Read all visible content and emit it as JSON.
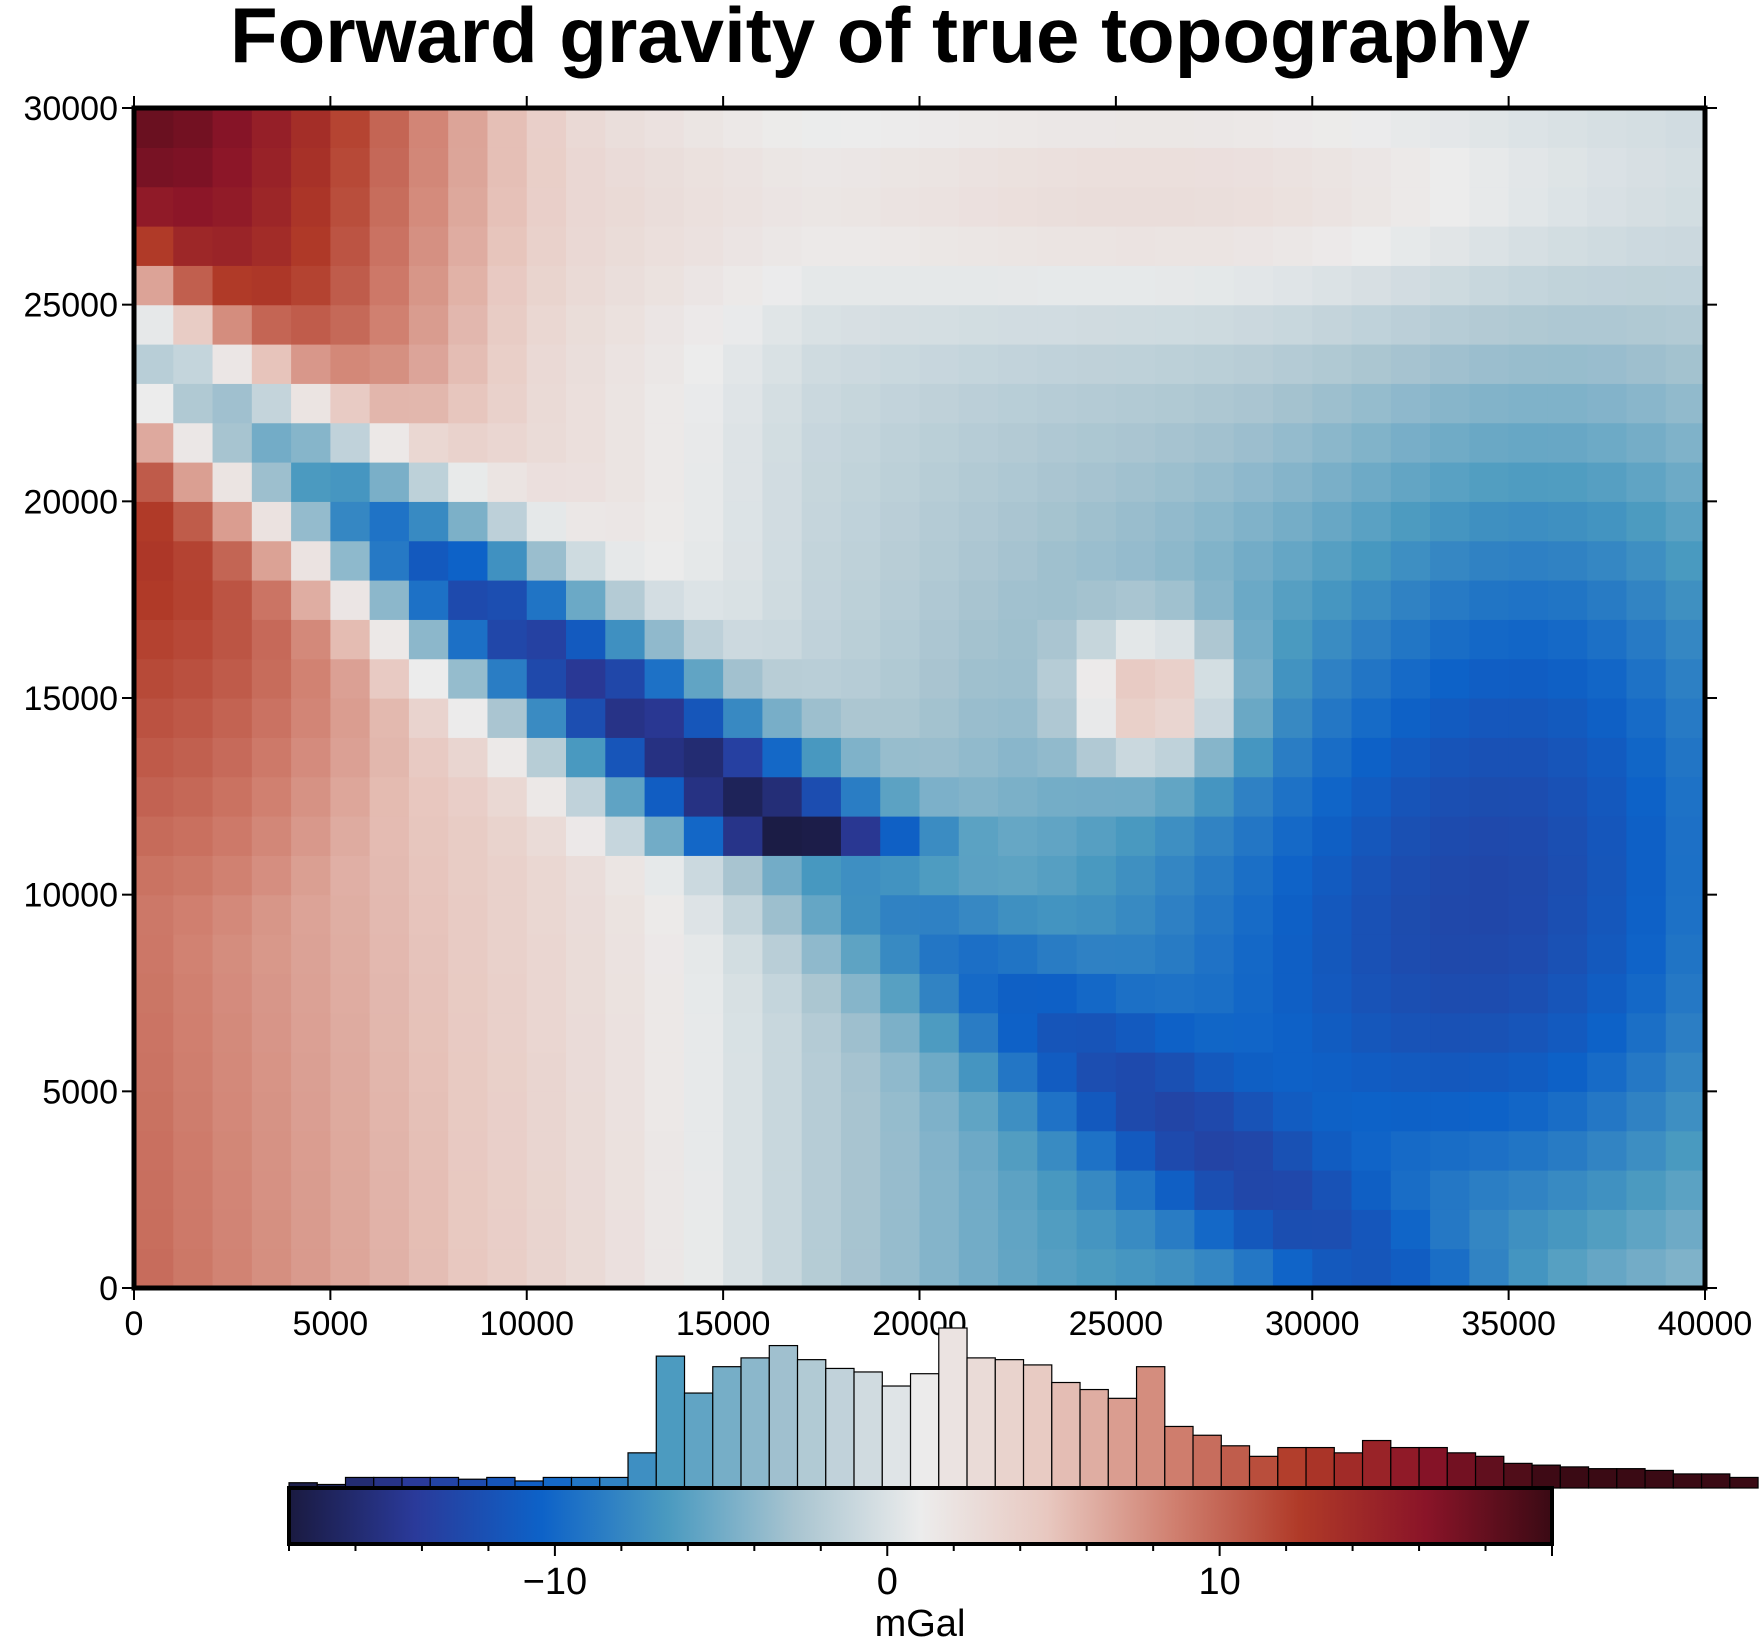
{
  "chart_data": {
    "type": "heatmap",
    "title": "Forward gravity of true topography",
    "xlabel": "",
    "ylabel": "",
    "xlim": [
      0,
      40000
    ],
    "ylim": [
      0,
      30000
    ],
    "x_ticks": [
      "0",
      "5000",
      "10000",
      "15000",
      "20000",
      "25000",
      "30000",
      "35000",
      "40000"
    ],
    "y_ticks": [
      "0",
      "5000",
      "10000",
      "15000",
      "20000",
      "25000",
      "30000"
    ],
    "grid_shape": {
      "nx": 40,
      "ny": 30,
      "cell_size": 1000
    },
    "field_description_values": {
      "max_anomaly_top_left": 19,
      "min_anomaly_ridge": -17,
      "local_high_near": {
        "x": 26000,
        "y": 15000,
        "value": 11
      },
      "broad_low_southeast": -10
    },
    "colorbar": {
      "label": "mGal",
      "range": [
        -18,
        20
      ],
      "tick_labels": [
        "−10",
        "0",
        "10"
      ],
      "tick_values": [
        -10,
        0,
        10
      ],
      "colors": [
        "#1a1a40",
        "#2a3a9a",
        "#0d62c8",
        "#4a9ac0",
        "#a8c4d0",
        "#ececec",
        "#e8c8c0",
        "#d08070",
        "#b03a28",
        "#8a1428",
        "#3a0a14"
      ]
    },
    "histogram": {
      "bin_start": -18,
      "bin_width": 0.85,
      "counts": [
        3,
        2,
        6,
        6,
        6,
        6,
        5,
        6,
        4,
        6,
        6,
        6,
        20,
        75,
        54,
        69,
        74,
        81,
        73,
        68,
        66,
        58,
        65,
        91,
        74,
        73,
        70,
        60,
        56,
        51,
        69,
        35,
        30,
        24,
        18,
        23,
        23,
        20,
        27,
        23,
        23,
        20,
        18,
        14,
        13,
        12,
        11,
        11,
        10,
        8,
        8,
        6
      ]
    }
  }
}
